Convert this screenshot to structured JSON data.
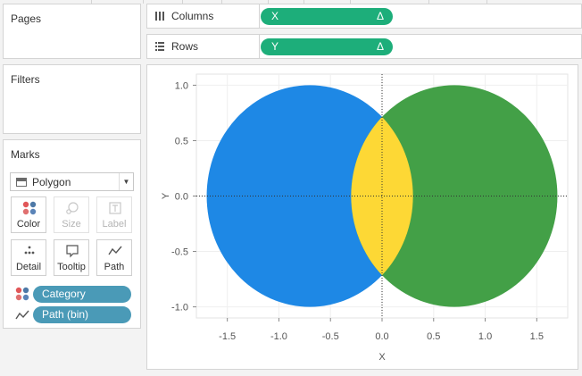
{
  "pages": {
    "title": "Pages"
  },
  "filters": {
    "title": "Filters"
  },
  "marks": {
    "title": "Marks",
    "mark_type": "Polygon",
    "buttons": [
      {
        "label": "Color",
        "icon": "color-icon",
        "enabled": true
      },
      {
        "label": "Size",
        "icon": "size-icon",
        "enabled": false
      },
      {
        "label": "Label",
        "icon": "label-icon",
        "enabled": false
      },
      {
        "label": "Detail",
        "icon": "detail-icon",
        "enabled": true
      },
      {
        "label": "Tooltip",
        "icon": "tooltip-icon",
        "enabled": true
      },
      {
        "label": "Path",
        "icon": "path-icon",
        "enabled": true
      }
    ],
    "fields": [
      {
        "label": "Category",
        "icon": "color-icon"
      },
      {
        "label": "Path (bin)",
        "icon": "path-icon"
      }
    ]
  },
  "shelves": {
    "columns": {
      "name": "Columns",
      "pill": "X",
      "delta": "Δ"
    },
    "rows": {
      "name": "Rows",
      "pill": "Y",
      "delta": "Δ"
    }
  },
  "chart_data": {
    "type": "area",
    "xlabel": "X",
    "ylabel": "Y",
    "xlim": [
      -1.8,
      1.8
    ],
    "ylim": [
      -1.1,
      1.1
    ],
    "xticks": [
      -1.5,
      -1.0,
      -0.5,
      0.0,
      0.5,
      1.0,
      1.5
    ],
    "yticks": [
      1.0,
      0.5,
      0.0,
      -0.5,
      -1.0
    ],
    "xtick_labels": [
      "-1.5",
      "-1.0",
      "-0.5",
      "0.0",
      "0.5",
      "1.0",
      "1.5"
    ],
    "ytick_labels": [
      "1.0",
      "0.5",
      "0.0",
      "-0.5",
      "-1.0"
    ],
    "grid": true,
    "series": [
      {
        "shape": "circle",
        "center": [
          -0.7,
          0.0
        ],
        "radius": 1.0,
        "color": "#1e88e5"
      },
      {
        "shape": "circle",
        "center": [
          0.7,
          0.0
        ],
        "radius": 1.0,
        "color": "#43a047"
      },
      {
        "shape": "lens",
        "center": [
          0.0,
          0.0
        ],
        "color": "#fdd835"
      }
    ],
    "reference_lines": {
      "x": 0,
      "y": 0,
      "style": "dotted"
    }
  },
  "colors": {
    "pill_teal": "#4a9ab7",
    "pill_green": "#1dae7a",
    "blue": "#1e88e5",
    "green": "#43a047",
    "yellow": "#fdd835"
  }
}
